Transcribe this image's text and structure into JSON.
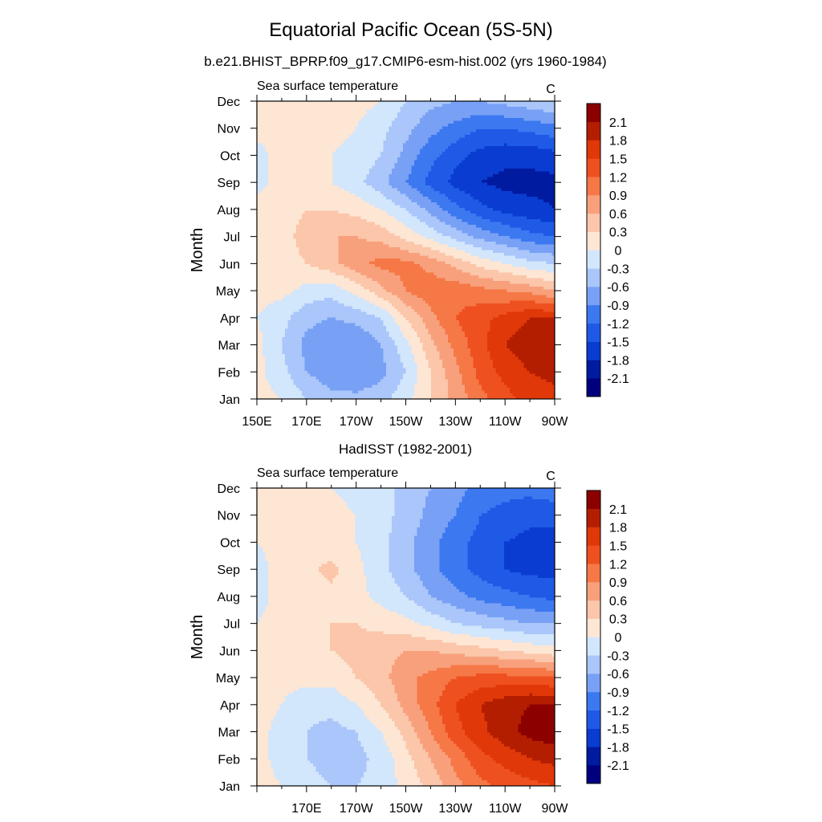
{
  "figure": {
    "title": "Equatorial Pacific Ocean (5S-5N)",
    "subtitle": "b.e21.BHIST_BPRP.f09_g17.CMIP6-esm-hist.002 (yrs 1960-1984)"
  },
  "colorbar": {
    "levels": [
      -2.1,
      -1.8,
      -1.5,
      -1.2,
      -0.9,
      -0.6,
      -0.3,
      0,
      0.3,
      0.6,
      0.9,
      1.2,
      1.5,
      1.8,
      2.1
    ],
    "labels": [
      "-2.1",
      "-1.8",
      "-1.5",
      "-1.2",
      "-0.9",
      "-0.6",
      "-0.3",
      "0",
      "0.3",
      "0.6",
      "0.9",
      "1.2",
      "1.5",
      "1.8",
      "2.1"
    ],
    "colors": [
      "#00007f",
      "#001aa0",
      "#0a3cd2",
      "#1e5ae6",
      "#3c78f0",
      "#78a0f5",
      "#aac6fa",
      "#d2e6fc",
      "#fde6d4",
      "#fbc6aa",
      "#f8a07c",
      "#f57846",
      "#ef5020",
      "#e03808",
      "#b41e00",
      "#8c0000"
    ]
  },
  "chart_data": [
    {
      "type": "heatmap",
      "panel_title": "",
      "left_label": "Sea surface temperature",
      "right_label": "C",
      "xlabel": "",
      "ylabel": "Month",
      "x_ticks": [
        "150E",
        "170E",
        "170W",
        "150W",
        "130W",
        "110W",
        "90W"
      ],
      "y_ticks": [
        "Jan",
        "Feb",
        "Mar",
        "Apr",
        "May",
        "Jun",
        "Jul",
        "Aug",
        "Sep",
        "Oct",
        "Nov",
        "Dec"
      ],
      "xlim": [
        150,
        270
      ],
      "ylim": [
        1,
        12
      ],
      "longitudes": [
        150,
        160,
        170,
        180,
        190,
        200,
        210,
        220,
        230,
        240,
        250,
        260,
        270
      ],
      "months": [
        "Jan",
        "Feb",
        "Mar",
        "Apr",
        "May",
        "Jun",
        "Jul",
        "Aug",
        "Sep",
        "Oct",
        "Nov",
        "Dec"
      ],
      "values": [
        [
          0.1,
          0.0,
          -0.3,
          -0.5,
          -0.5,
          -0.4,
          -0.1,
          0.3,
          0.7,
          1.1,
          1.4,
          1.6,
          1.7
        ],
        [
          0.1,
          -0.2,
          -0.6,
          -0.8,
          -0.9,
          -0.7,
          -0.3,
          0.3,
          0.8,
          1.3,
          1.6,
          1.8,
          1.9
        ],
        [
          0.1,
          -0.3,
          -0.7,
          -0.9,
          -0.9,
          -0.6,
          -0.1,
          0.5,
          1.0,
          1.4,
          1.8,
          2.0,
          2.1
        ],
        [
          0.0,
          -0.2,
          -0.5,
          -0.6,
          -0.5,
          -0.3,
          0.3,
          0.8,
          1.2,
          1.4,
          1.6,
          1.8,
          1.8
        ],
        [
          0.1,
          0.1,
          -0.1,
          -0.2,
          0.1,
          0.5,
          0.9,
          1.1,
          1.1,
          1.0,
          0.9,
          0.8,
          0.6
        ],
        [
          0.1,
          0.2,
          0.3,
          0.5,
          0.8,
          1.0,
          1.0,
          0.8,
          0.5,
          0.2,
          0.0,
          -0.2,
          -0.3
        ],
        [
          0.1,
          0.2,
          0.4,
          0.6,
          0.6,
          0.5,
          0.2,
          -0.1,
          -0.4,
          -0.7,
          -0.9,
          -1.1,
          -1.2
        ],
        [
          0.1,
          0.2,
          0.3,
          0.3,
          0.2,
          0.0,
          -0.3,
          -0.7,
          -1.1,
          -1.4,
          -1.6,
          -1.7,
          -1.8
        ],
        [
          -0.1,
          0.1,
          0.1,
          0.0,
          -0.2,
          -0.5,
          -0.9,
          -1.3,
          -1.6,
          -1.8,
          -1.9,
          -1.9,
          -1.9
        ],
        [
          -0.1,
          0.1,
          0.1,
          0.0,
          -0.1,
          -0.3,
          -0.7,
          -1.1,
          -1.4,
          -1.6,
          -1.7,
          -1.7,
          -1.6
        ],
        [
          0.1,
          0.1,
          0.1,
          0.1,
          0.0,
          -0.2,
          -0.5,
          -0.8,
          -1.0,
          -1.2,
          -1.2,
          -1.1,
          -1.0
        ],
        [
          0.1,
          0.1,
          0.2,
          0.1,
          0.1,
          0.0,
          -0.3,
          -0.5,
          -0.6,
          -0.6,
          -0.5,
          -0.4,
          -0.3
        ]
      ]
    },
    {
      "type": "heatmap",
      "panel_title": "HadISST (1982-2001)",
      "left_label": "Sea surface temperature",
      "right_label": "C",
      "xlabel": "",
      "ylabel": "Month",
      "x_ticks": [
        "",
        "170E",
        "170W",
        "150W",
        "130W",
        "110W",
        "90W"
      ],
      "y_ticks": [
        "Jan",
        "Feb",
        "Mar",
        "Apr",
        "May",
        "Jun",
        "Jul",
        "Aug",
        "Sep",
        "Oct",
        "Nov",
        "Dec"
      ],
      "xlim": [
        150,
        270
      ],
      "ylim": [
        1,
        12
      ],
      "longitudes": [
        150,
        160,
        170,
        180,
        190,
        200,
        210,
        220,
        230,
        240,
        250,
        260,
        270
      ],
      "months": [
        "Jan",
        "Feb",
        "Mar",
        "Apr",
        "May",
        "Jun",
        "Jul",
        "Aug",
        "Sep",
        "Oct",
        "Nov",
        "Dec"
      ],
      "values": [
        [
          0.1,
          0.0,
          -0.2,
          -0.3,
          -0.3,
          -0.2,
          0.1,
          0.4,
          0.8,
          1.1,
          1.3,
          1.4,
          1.5
        ],
        [
          0.1,
          -0.1,
          -0.3,
          -0.4,
          -0.4,
          -0.2,
          0.2,
          0.6,
          1.0,
          1.4,
          1.6,
          1.8,
          1.9
        ],
        [
          0.1,
          -0.1,
          -0.3,
          -0.4,
          -0.3,
          0.0,
          0.4,
          0.9,
          1.4,
          1.7,
          2.0,
          2.2,
          2.3
        ],
        [
          0.1,
          0.0,
          -0.2,
          -0.2,
          0.0,
          0.3,
          0.7,
          1.1,
          1.5,
          1.8,
          2.0,
          2.1,
          2.1
        ],
        [
          0.1,
          0.1,
          0.1,
          0.1,
          0.3,
          0.5,
          0.8,
          1.0,
          1.2,
          1.3,
          1.3,
          1.3,
          1.2
        ],
        [
          0.1,
          0.1,
          0.2,
          0.3,
          0.4,
          0.5,
          0.6,
          0.6,
          0.5,
          0.4,
          0.3,
          0.2,
          0.1
        ],
        [
          0.0,
          0.1,
          0.2,
          0.3,
          0.3,
          0.2,
          0.1,
          -0.1,
          -0.3,
          -0.4,
          -0.5,
          -0.6,
          -0.6
        ],
        [
          -0.1,
          0.1,
          0.2,
          0.2,
          0.1,
          -0.1,
          -0.3,
          -0.6,
          -0.8,
          -1.0,
          -1.1,
          -1.2,
          -1.3
        ],
        [
          -0.1,
          0.1,
          0.2,
          0.4,
          0.1,
          -0.2,
          -0.5,
          -0.8,
          -1.1,
          -1.3,
          -1.5,
          -1.6,
          -1.6
        ],
        [
          0.0,
          0.1,
          0.2,
          0.1,
          0.0,
          -0.2,
          -0.5,
          -0.8,
          -1.1,
          -1.3,
          -1.5,
          -1.6,
          -1.6
        ],
        [
          0.1,
          0.1,
          0.1,
          0.1,
          0.0,
          -0.2,
          -0.4,
          -0.7,
          -0.9,
          -1.2,
          -1.3,
          -1.4,
          -1.4
        ],
        [
          0.1,
          0.1,
          0.1,
          0.0,
          -0.1,
          -0.2,
          -0.4,
          -0.6,
          -0.8,
          -1.0,
          -1.1,
          -1.1,
          -1.0
        ]
      ]
    }
  ]
}
